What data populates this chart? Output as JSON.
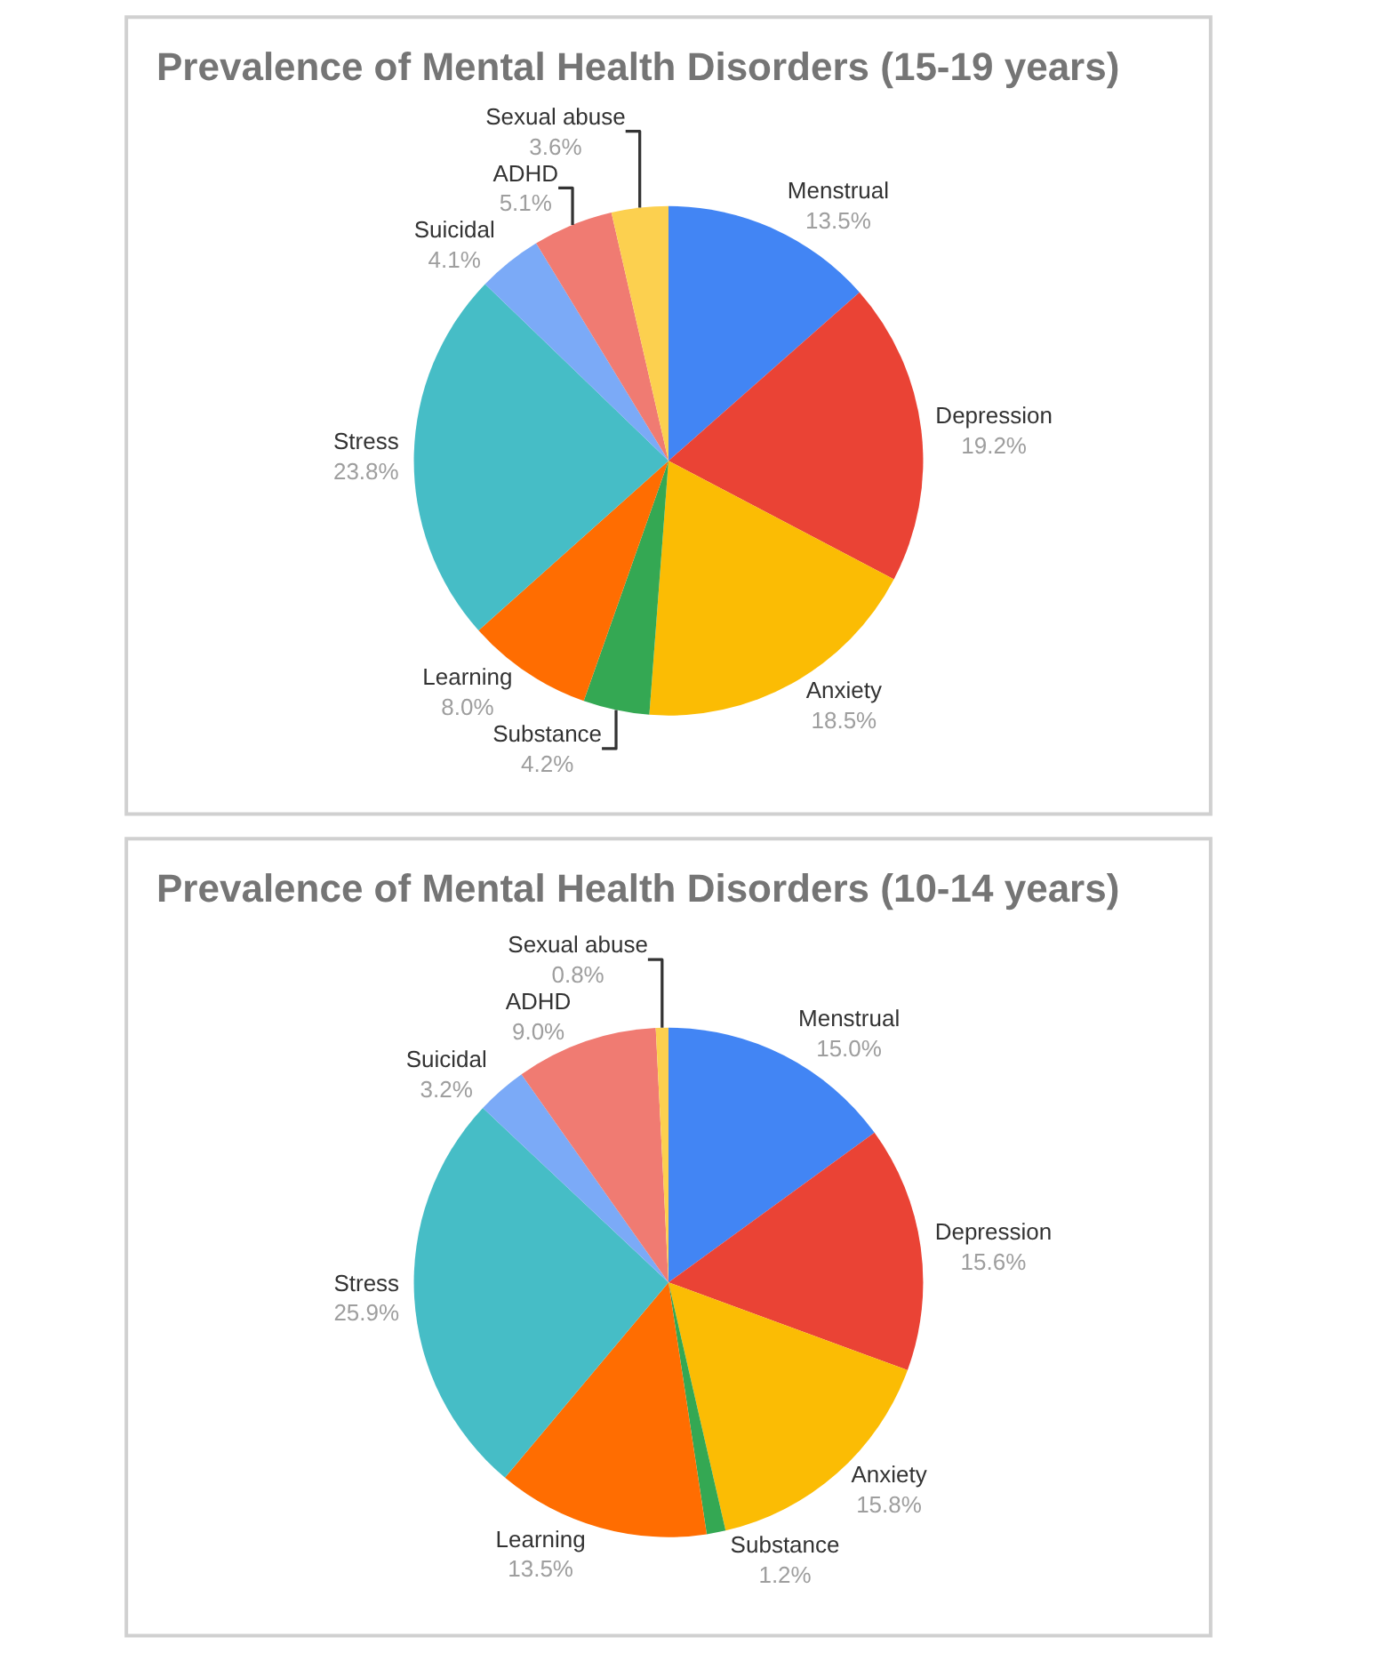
{
  "chart_data": [
    {
      "type": "pie",
      "title": "Prevalence of Mental Health Disorders (15-19 years)",
      "categories": [
        "Menstrual",
        "Depression",
        "Anxiety",
        "Substance",
        "Learning",
        "Stress",
        "Suicidal",
        "ADHD",
        "Sexual abuse"
      ],
      "values": [
        13.5,
        19.2,
        18.5,
        4.2,
        8.0,
        23.8,
        4.1,
        5.1,
        3.6
      ],
      "value_labels": [
        "13.5%",
        "19.2%",
        "18.5%",
        "4.2%",
        "8.0%",
        "23.8%",
        "4.1%",
        "5.1%",
        "3.6%"
      ],
      "colors": [
        "#4285f4",
        "#ea4335",
        "#fbbc04",
        "#34a853",
        "#ff6d01",
        "#46bdc6",
        "#7baaf7",
        "#f07b72",
        "#fcd04f"
      ],
      "legend": false
    },
    {
      "type": "pie",
      "title": "Prevalence of Mental Health Disorders (10-14 years)",
      "categories": [
        "Menstrual",
        "Depression",
        "Anxiety",
        "Substance",
        "Learning",
        "Stress",
        "Suicidal",
        "ADHD",
        "Sexual abuse"
      ],
      "values": [
        15.0,
        15.6,
        15.8,
        1.2,
        13.5,
        25.9,
        3.2,
        9.0,
        0.8
      ],
      "value_labels": [
        "15.0%",
        "15.6%",
        "15.8%",
        "1.2%",
        "13.5%",
        "25.9%",
        "3.2%",
        "9.0%",
        "0.8%"
      ],
      "colors": [
        "#4285f4",
        "#ea4335",
        "#fbbc04",
        "#34a853",
        "#ff6d01",
        "#46bdc6",
        "#7baaf7",
        "#f07b72",
        "#fcd04f"
      ],
      "legend": false
    }
  ]
}
